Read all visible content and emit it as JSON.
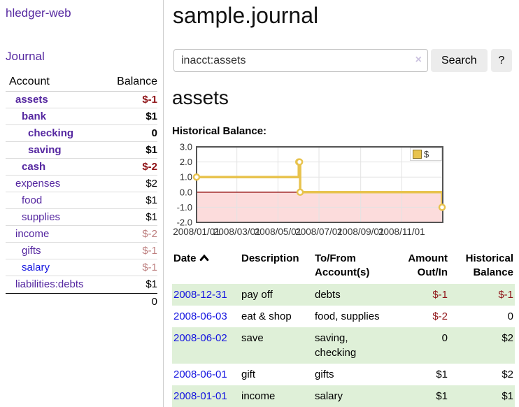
{
  "sidebar": {
    "app_title": "hledger-web",
    "journal_label": "Journal",
    "accounts_table": {
      "header": {
        "account": "Account",
        "balance": "Balance"
      },
      "rows": [
        {
          "name": "assets",
          "balance": "$-1"
        },
        {
          "name": "bank",
          "balance": "$1"
        },
        {
          "name": "checking",
          "balance": "0"
        },
        {
          "name": "saving",
          "balance": "$1"
        },
        {
          "name": "cash",
          "balance": "$-2"
        },
        {
          "name": "expenses",
          "balance": "$2"
        },
        {
          "name": "food",
          "balance": "$1"
        },
        {
          "name": "supplies",
          "balance": "$1"
        },
        {
          "name": "income",
          "balance": "$-2"
        },
        {
          "name": "gifts",
          "balance": "$-1"
        },
        {
          "name": "salary",
          "balance": "$-1"
        },
        {
          "name": "liabilities:debts",
          "balance": "$1"
        }
      ],
      "total": "0"
    }
  },
  "main": {
    "title": "sample.journal",
    "search": {
      "value": "inacct:assets",
      "clear_icon": "×",
      "button_label": "Search",
      "help_label": "?"
    },
    "account_heading": "assets",
    "chart_label": "Historical Balance:"
  },
  "chart_data": {
    "type": "line",
    "title": "Historical Balance",
    "step": true,
    "series": [
      {
        "name": "$",
        "x": [
          "2008-01-01",
          "2008-06-01",
          "2008-06-02",
          "2008-06-03",
          "2008-12-31"
        ],
        "values": [
          1,
          2,
          2,
          0,
          -1
        ]
      }
    ],
    "x_range": [
      "2008-01-01",
      "2009-01-01"
    ],
    "ylim": [
      -2,
      3
    ],
    "y_ticks": [
      "3.0",
      "2.0",
      "1.0",
      "0.0",
      "-1.0",
      "-2.0"
    ],
    "x_ticks": [
      "2008/01/01",
      "2008/03/01",
      "2008/05/01",
      "2008/07/01",
      "2008/09/01",
      "2008/11/01"
    ],
    "legend": {
      "label": "$",
      "position": "top-right"
    },
    "colors": {
      "line": "#e8c34e",
      "marker_fill": "#ffffff",
      "negative_region": "#fcdcdc",
      "zero_line": "#8b0000",
      "grid": "#e3e3e3",
      "border": "#545454"
    }
  },
  "register": {
    "headers": {
      "date": "Date",
      "description": "Description",
      "accounts": "To/From Account(s)",
      "amount": "Amount Out/In",
      "balance": "Historical Balance"
    },
    "rows": [
      {
        "date": "2008-12-31",
        "description": "pay off",
        "accounts": "debts",
        "amount": "$-1",
        "balance": "$-1"
      },
      {
        "date": "2008-06-03",
        "description": "eat & shop",
        "accounts": "food, supplies",
        "amount": "$-2",
        "balance": "0"
      },
      {
        "date": "2008-06-02",
        "description": "save",
        "accounts": "saving, checking",
        "amount": "0",
        "balance": "$2"
      },
      {
        "date": "2008-06-01",
        "description": "gift",
        "accounts": "gifts",
        "amount": "$1",
        "balance": "$2"
      },
      {
        "date": "2008-01-01",
        "description": "income",
        "accounts": "salary",
        "amount": "$1",
        "balance": "$1"
      }
    ]
  }
}
